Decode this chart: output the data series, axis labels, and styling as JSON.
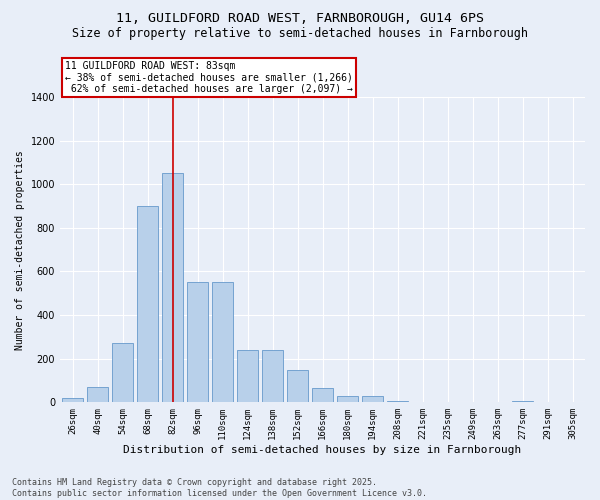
{
  "title": "11, GUILDFORD ROAD WEST, FARNBOROUGH, GU14 6PS",
  "subtitle": "Size of property relative to semi-detached houses in Farnborough",
  "xlabel": "Distribution of semi-detached houses by size in Farnborough",
  "ylabel": "Number of semi-detached properties",
  "categories": [
    "26sqm",
    "40sqm",
    "54sqm",
    "68sqm",
    "82sqm",
    "96sqm",
    "110sqm",
    "124sqm",
    "138sqm",
    "152sqm",
    "166sqm",
    "180sqm",
    "194sqm",
    "208sqm",
    "221sqm",
    "235sqm",
    "249sqm",
    "263sqm",
    "277sqm",
    "291sqm",
    "305sqm"
  ],
  "values": [
    20,
    70,
    270,
    900,
    1050,
    550,
    550,
    240,
    240,
    150,
    65,
    30,
    30,
    5,
    0,
    0,
    0,
    0,
    5,
    0,
    0
  ],
  "bar_color": "#b8d0ea",
  "bar_edge_color": "#6699cc",
  "background_color": "#e8eef8",
  "grid_color": "#ffffff",
  "property_label": "11 GUILDFORD ROAD WEST: 83sqm",
  "pct_smaller": 38,
  "pct_larger": 62,
  "n_smaller": 1266,
  "n_larger": 2097,
  "vline_bin_index": 4,
  "vline_color": "#cc0000",
  "annotation_box_facecolor": "#ffffff",
  "annotation_box_edgecolor": "#cc0000",
  "footer_line1": "Contains HM Land Registry data © Crown copyright and database right 2025.",
  "footer_line2": "Contains public sector information licensed under the Open Government Licence v3.0.",
  "ylim": [
    0,
    1400
  ],
  "yticks": [
    0,
    200,
    400,
    600,
    800,
    1000,
    1200,
    1400
  ]
}
